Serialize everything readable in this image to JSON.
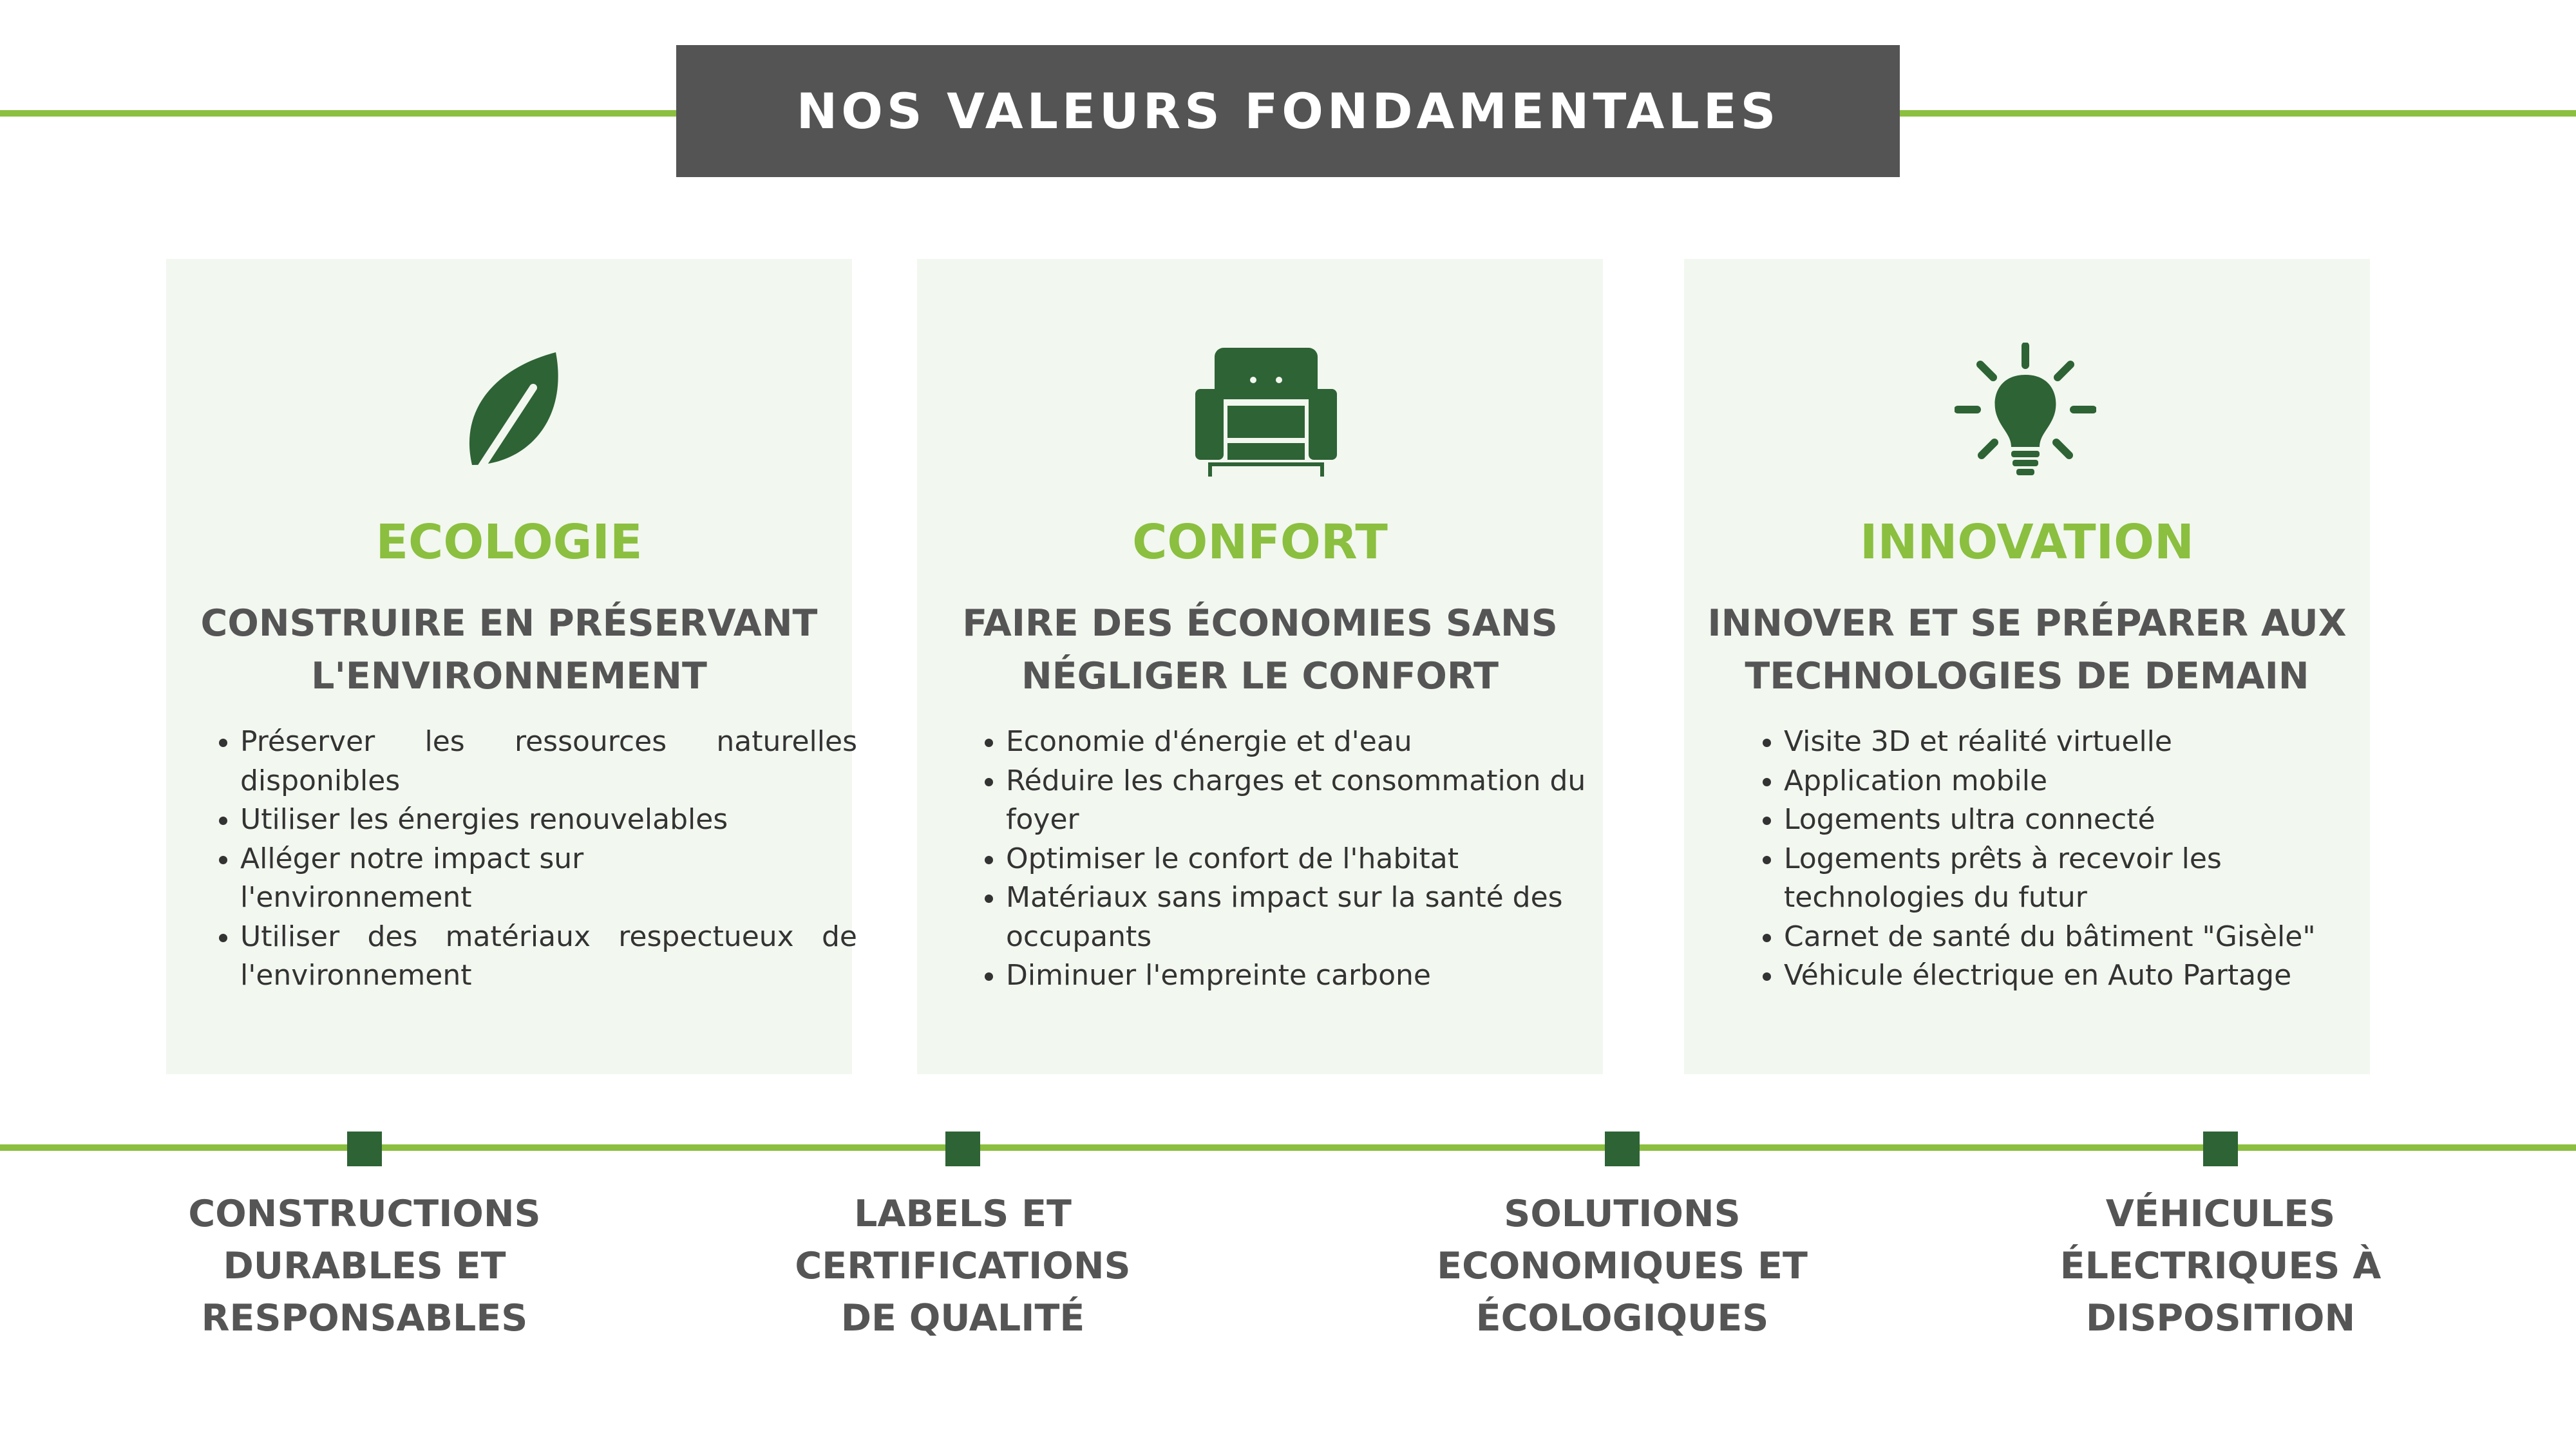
{
  "header": {
    "title": "NOS VALEURS FONDAMENTALES"
  },
  "colors": {
    "accent_green": "#8bbf3f",
    "dark_green": "#2e6335",
    "header_gray": "#545454",
    "card_bg": "#f2f7ef"
  },
  "cards": [
    {
      "icon": "leaf-icon",
      "title": "ECOLOGIE",
      "subtitle": "CONSTRUIRE EN PRÉSERVANT L'ENVIRONNEMENT",
      "items": [
        "Préserver les ressources naturelles disponibles",
        "Utiliser les énergies renouvelables",
        "Alléger notre impact sur l'environnement",
        "Utiliser des matériaux respectueux de l'environnement"
      ]
    },
    {
      "icon": "armchair-icon",
      "title": "CONFORT",
      "subtitle": "FAIRE DES ÉCONOMIES SANS NÉGLIGER LE CONFORT",
      "items": [
        "Economie d'énergie et d'eau",
        "Réduire les charges et consommation du foyer",
        "Optimiser le confort de l'habitat",
        "Matériaux sans impact sur la santé des occupants",
        "Diminuer l'empreinte carbone"
      ]
    },
    {
      "icon": "lightbulb-icon",
      "title": "INNOVATION",
      "subtitle": "INNOVER ET SE PRÉPARER AUX TECHNOLOGIES DE DEMAIN",
      "items": [
        "Visite 3D et réalité virtuelle",
        "Application mobile",
        "Logements ultra connecté",
        "Logements prêts à recevoir les technologies du futur",
        "Carnet de santé du bâtiment \"Gisèle\"",
        "Véhicule électrique en Auto Partage"
      ]
    }
  ],
  "timeline": [
    {
      "label": "CONSTRUCTIONS DURABLES ET RESPONSABLES"
    },
    {
      "label": "LABELS ET CERTIFICATIONS DE QUALITÉ"
    },
    {
      "label": "SOLUTIONS ECONOMIQUES ET ÉCOLOGIQUES"
    },
    {
      "label": "VÉHICULES ÉLECTRIQUES À DISPOSITION"
    }
  ]
}
